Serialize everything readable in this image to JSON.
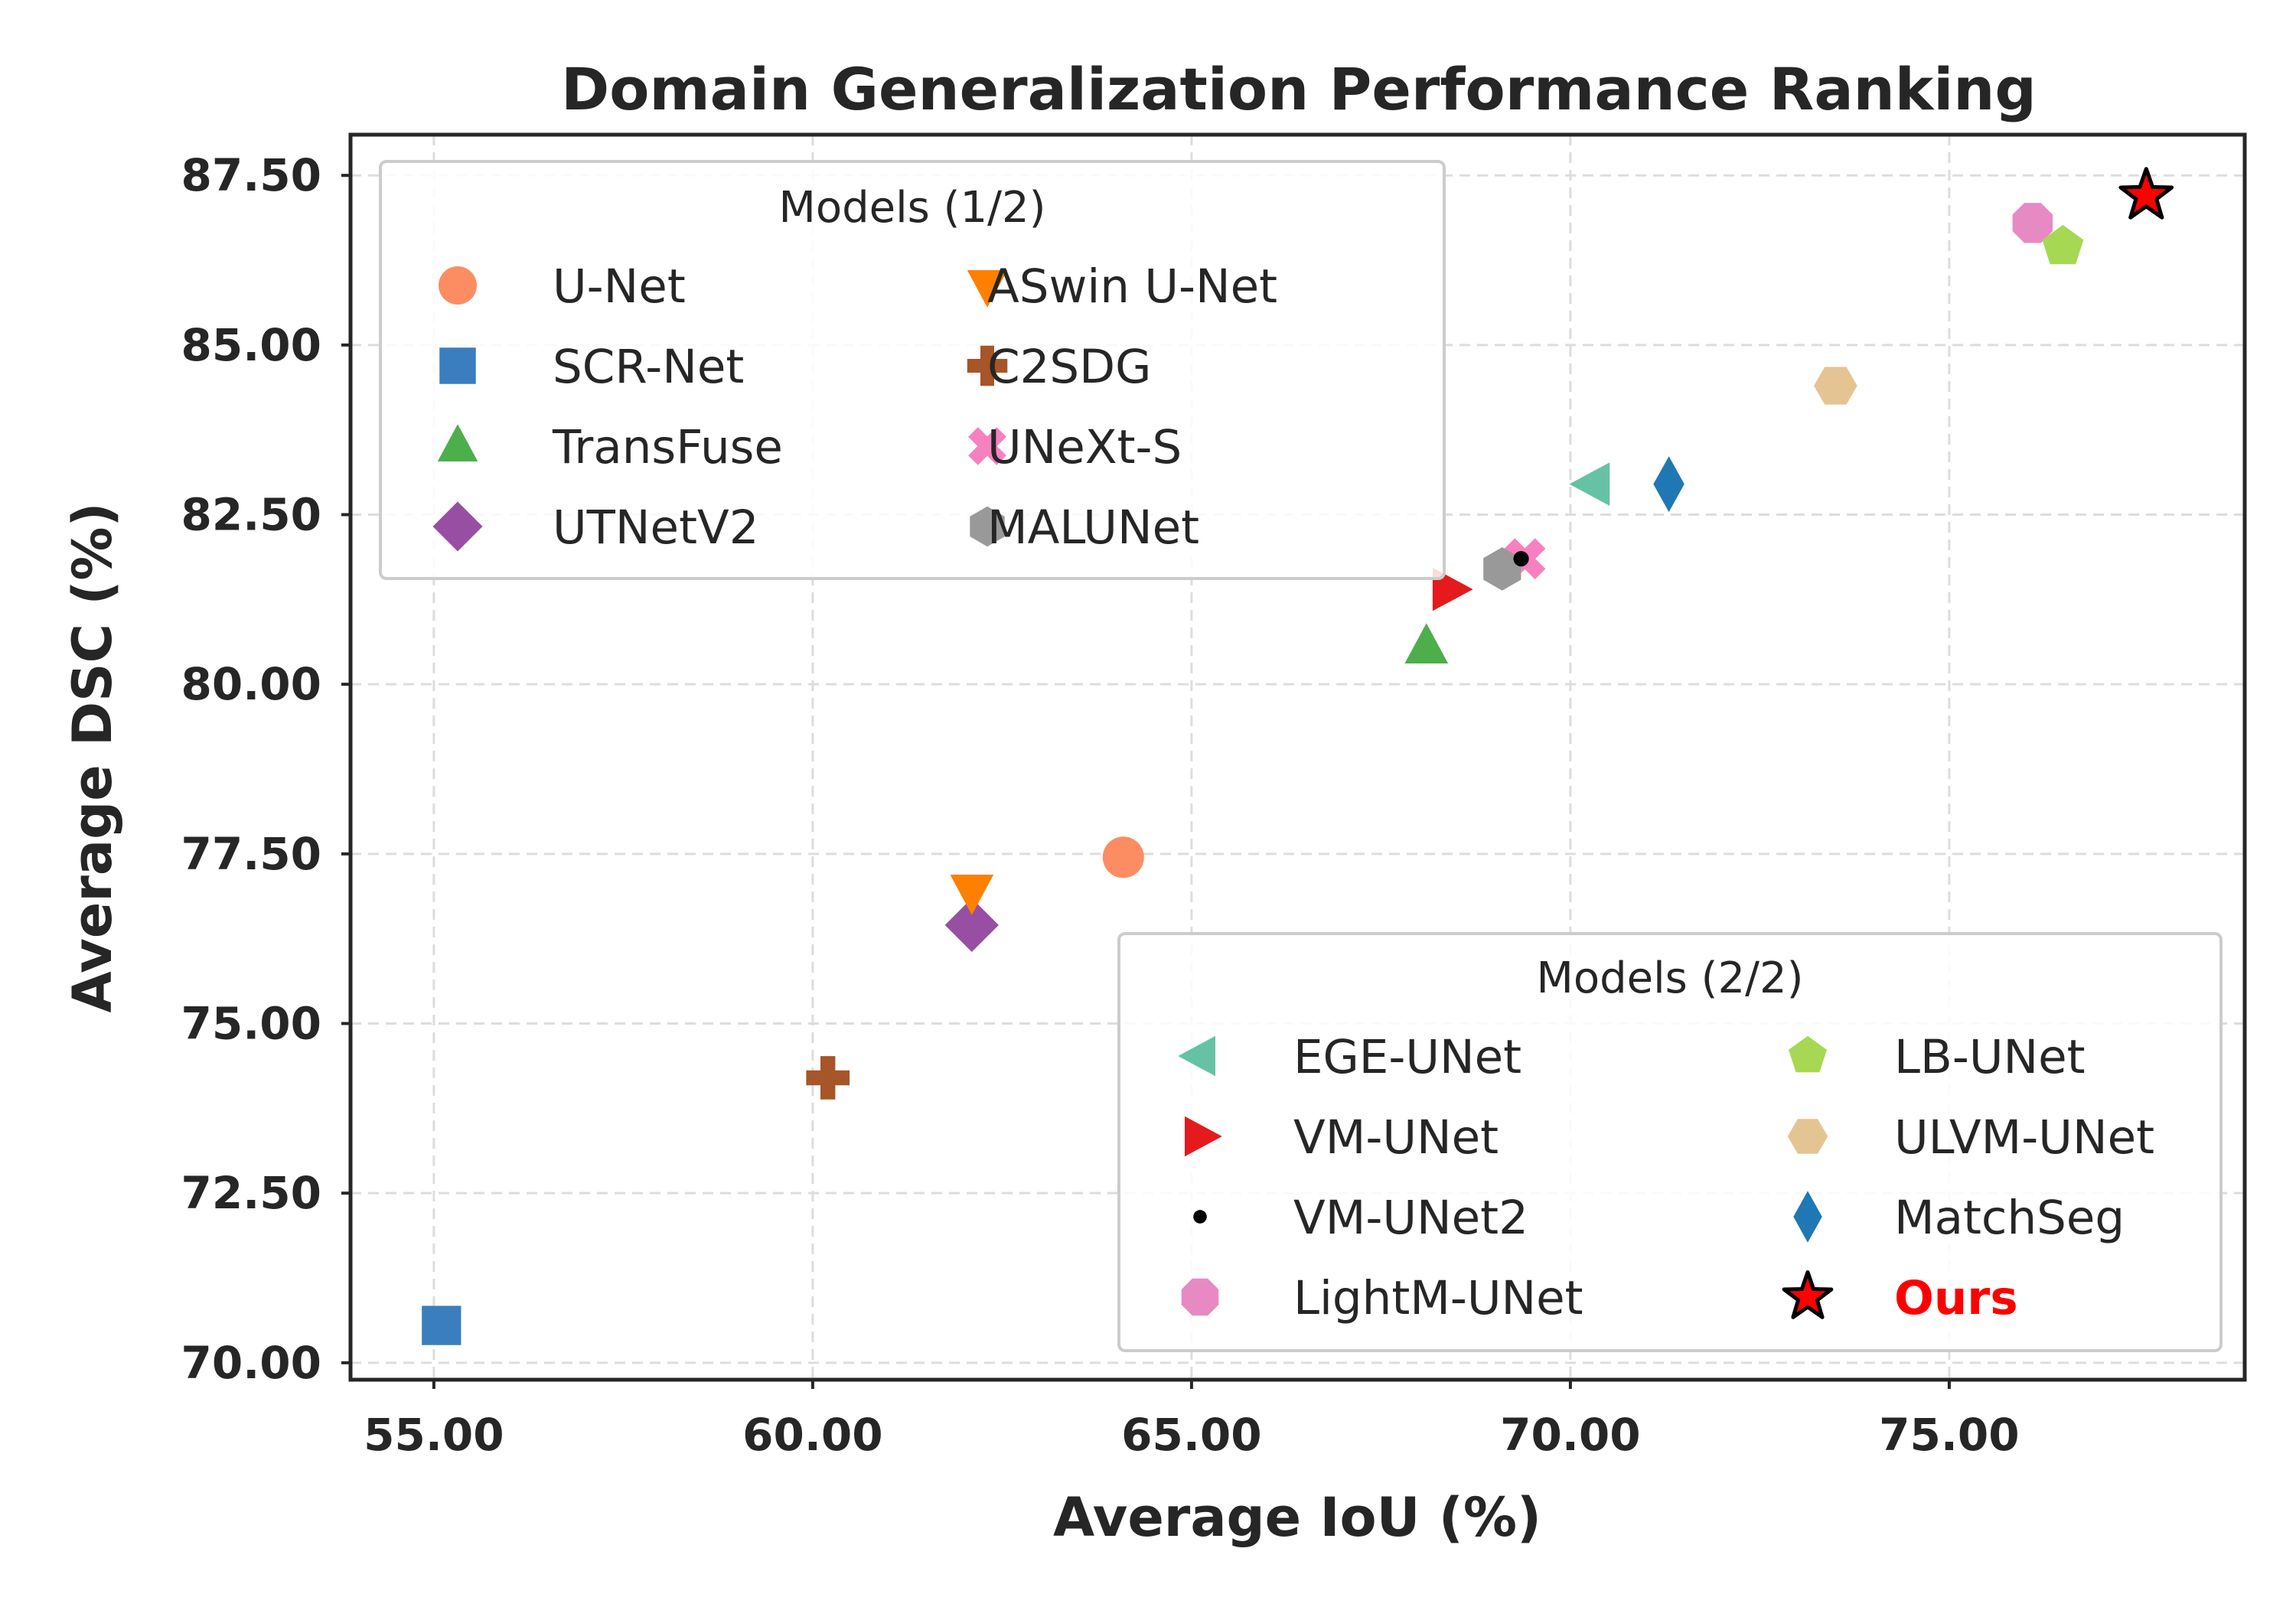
{
  "chart_data": {
    "type": "scatter",
    "title": "Domain Generalization Performance Ranking",
    "xlabel": "Average IoU (%)",
    "ylabel": "Average DSC (%)",
    "xlim": [
      53.9,
      78.9
    ],
    "ylim": [
      69.75,
      88.1
    ],
    "xticks": [
      "55.00",
      "60.00",
      "65.00",
      "70.00",
      "75.00"
    ],
    "yticks": [
      "70.00",
      "72.50",
      "75.00",
      "77.50",
      "80.00",
      "82.50",
      "85.00",
      "87.50"
    ],
    "grid": true,
    "legends": [
      {
        "title": "Models (1/2)",
        "placement": "upper-left"
      },
      {
        "title": "Models (2/2)",
        "placement": "lower-right"
      }
    ],
    "series": [
      {
        "name": "U-Net",
        "x": 64.1,
        "y": 77.45,
        "color": "#fc8d62",
        "marker": "circle",
        "legend": 0
      },
      {
        "name": "SCR-Net",
        "x": 55.1,
        "y": 70.55,
        "color": "#3a7ebf",
        "marker": "square",
        "legend": 0
      },
      {
        "name": "TransFuse",
        "x": 68.1,
        "y": 80.55,
        "color": "#4daf4a",
        "marker": "triangle-up",
        "legend": 0
      },
      {
        "name": "UTNetV2",
        "x": 62.1,
        "y": 76.45,
        "color": "#984ea3",
        "marker": "diamond",
        "legend": 0
      },
      {
        "name": "ASwin U-Net",
        "x": 62.1,
        "y": 76.95,
        "color": "#ff7f00",
        "marker": "triangle-down",
        "legend": 0
      },
      {
        "name": "C2SDG",
        "x": 60.2,
        "y": 74.2,
        "color": "#a65628",
        "marker": "plus",
        "legend": 0
      },
      {
        "name": "UNeXt-S",
        "x": 69.4,
        "y": 81.85,
        "color": "#f781bf",
        "marker": "x",
        "legend": 0
      },
      {
        "name": "MALUNet",
        "x": 69.1,
        "y": 81.7,
        "color": "#999999",
        "marker": "hexagon",
        "legend": 0
      },
      {
        "name": "EGE-UNet",
        "x": 70.3,
        "y": 82.95,
        "color": "#66c2a5",
        "marker": "triangle-left",
        "legend": 1
      },
      {
        "name": "VM-UNet",
        "x": 68.4,
        "y": 81.4,
        "color": "#e41a1c",
        "marker": "triangle-right",
        "legend": 1
      },
      {
        "name": "VM-UNet2",
        "x": 69.35,
        "y": 81.85,
        "color": "#000000",
        "marker": "dot",
        "legend": 1
      },
      {
        "name": "LightM-UNet",
        "x": 76.1,
        "y": 86.8,
        "color": "#e78ac3",
        "marker": "octagon",
        "legend": 1
      },
      {
        "name": "LB-UNet",
        "x": 76.5,
        "y": 86.45,
        "color": "#a6d854",
        "marker": "pentagon",
        "legend": 1
      },
      {
        "name": "ULVM-UNet",
        "x": 73.5,
        "y": 84.4,
        "color": "#e5c494",
        "marker": "hexagon-flat",
        "legend": 1
      },
      {
        "name": "MatchSeg",
        "x": 71.3,
        "y": 82.95,
        "color": "#1f78b4",
        "marker": "thin-diamond",
        "legend": 1
      },
      {
        "name": "Ours",
        "x": 77.6,
        "y": 87.2,
        "color": "#ff0000",
        "marker": "star",
        "legend": 1,
        "highlight": true
      }
    ]
  }
}
